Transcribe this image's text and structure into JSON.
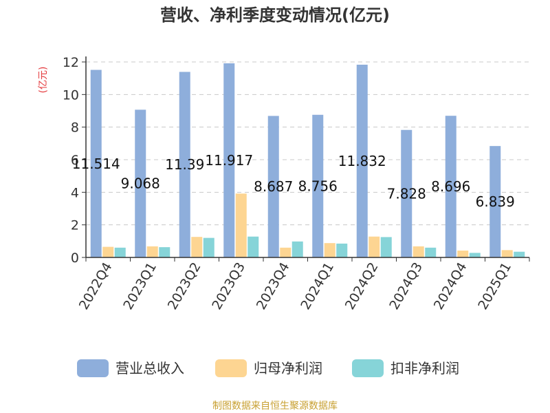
{
  "chart_data": {
    "type": "bar",
    "title": "营收、净利季度变动情况(亿元)",
    "ylabel": "(亿元)",
    "xlabel": "",
    "categories": [
      "2022Q4",
      "2023Q1",
      "2023Q2",
      "2023Q3",
      "2023Q4",
      "2024Q1",
      "2024Q2",
      "2024Q3",
      "2024Q4",
      "2025Q1"
    ],
    "y_ticks": [
      "0",
      "2",
      "4",
      "6",
      "8",
      "10",
      "12"
    ],
    "ylim": [
      0,
      12
    ],
    "grid": true,
    "legend_position": "bottom",
    "series": [
      {
        "name": "营业总收入",
        "color": "#8eaedb",
        "values": [
          11.514,
          9.068,
          11.39,
          11.917,
          8.687,
          8.756,
          11.832,
          7.828,
          8.696,
          6.839
        ],
        "labels": [
          "11.514",
          "9.068",
          "11.39",
          "11.917",
          "8.687",
          "8.756",
          "11.832",
          "7.828",
          "8.696",
          "6.839"
        ]
      },
      {
        "name": "归母净利润",
        "color": "#fdd592",
        "values": [
          0.65,
          0.68,
          1.26,
          3.92,
          0.6,
          0.88,
          1.28,
          0.68,
          0.42,
          0.45
        ]
      },
      {
        "name": "扣非净利润",
        "color": "#86d4d8",
        "values": [
          0.6,
          0.63,
          1.2,
          1.28,
          0.98,
          0.85,
          1.25,
          0.6,
          0.28,
          0.35
        ]
      }
    ],
    "source": "制图数据来自恒生聚源数据库"
  }
}
